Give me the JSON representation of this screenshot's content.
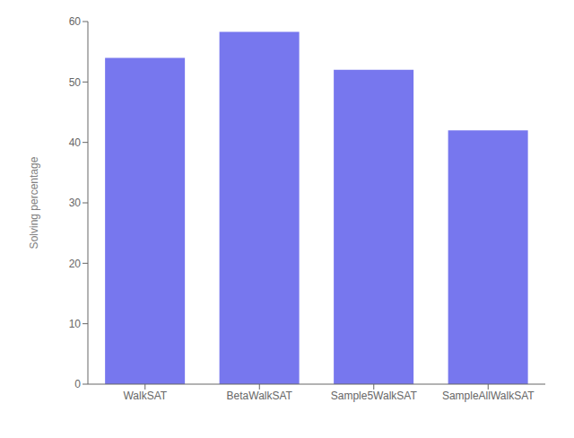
{
  "chart_data": {
    "type": "bar",
    "categories": [
      "WalkSAT",
      "BetaWalkSAT",
      "Sample5WalkSAT",
      "SampleAllWalkSAT"
    ],
    "values": [
      54.0,
      58.3,
      52.0,
      42.0
    ],
    "color": "#7777ee",
    "ylabel": "Solving percentage",
    "ylim": [
      0,
      60
    ],
    "yticks": [
      0,
      10,
      20,
      30,
      40,
      50,
      60
    ],
    "grid": false
  }
}
